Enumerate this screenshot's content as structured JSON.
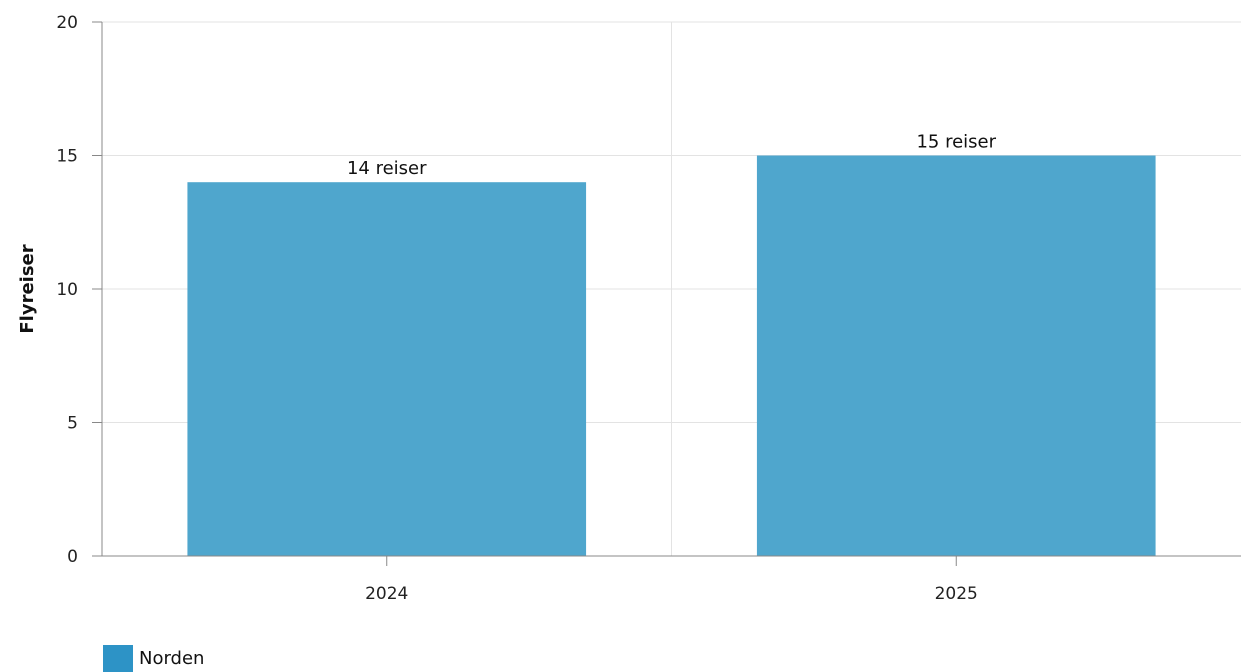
{
  "chart_data": {
    "type": "bar",
    "categories": [
      "2024",
      "2025"
    ],
    "series": [
      {
        "name": "Norden",
        "values": [
          14,
          15
        ],
        "labels": [
          "14 reiser",
          "15 reiser"
        ]
      }
    ],
    "ylabel": "Flyreiser",
    "xlabel": "",
    "ylim": [
      0,
      20
    ],
    "yticks": [
      "0",
      "5",
      "10",
      "15",
      "20"
    ],
    "grid": true,
    "legend_position": "bottom-left"
  },
  "colors": {
    "bar": "#4fa6cd",
    "legend_swatch": "#2d93c6",
    "grid": "#e3e3e3",
    "axis": "#888888"
  }
}
